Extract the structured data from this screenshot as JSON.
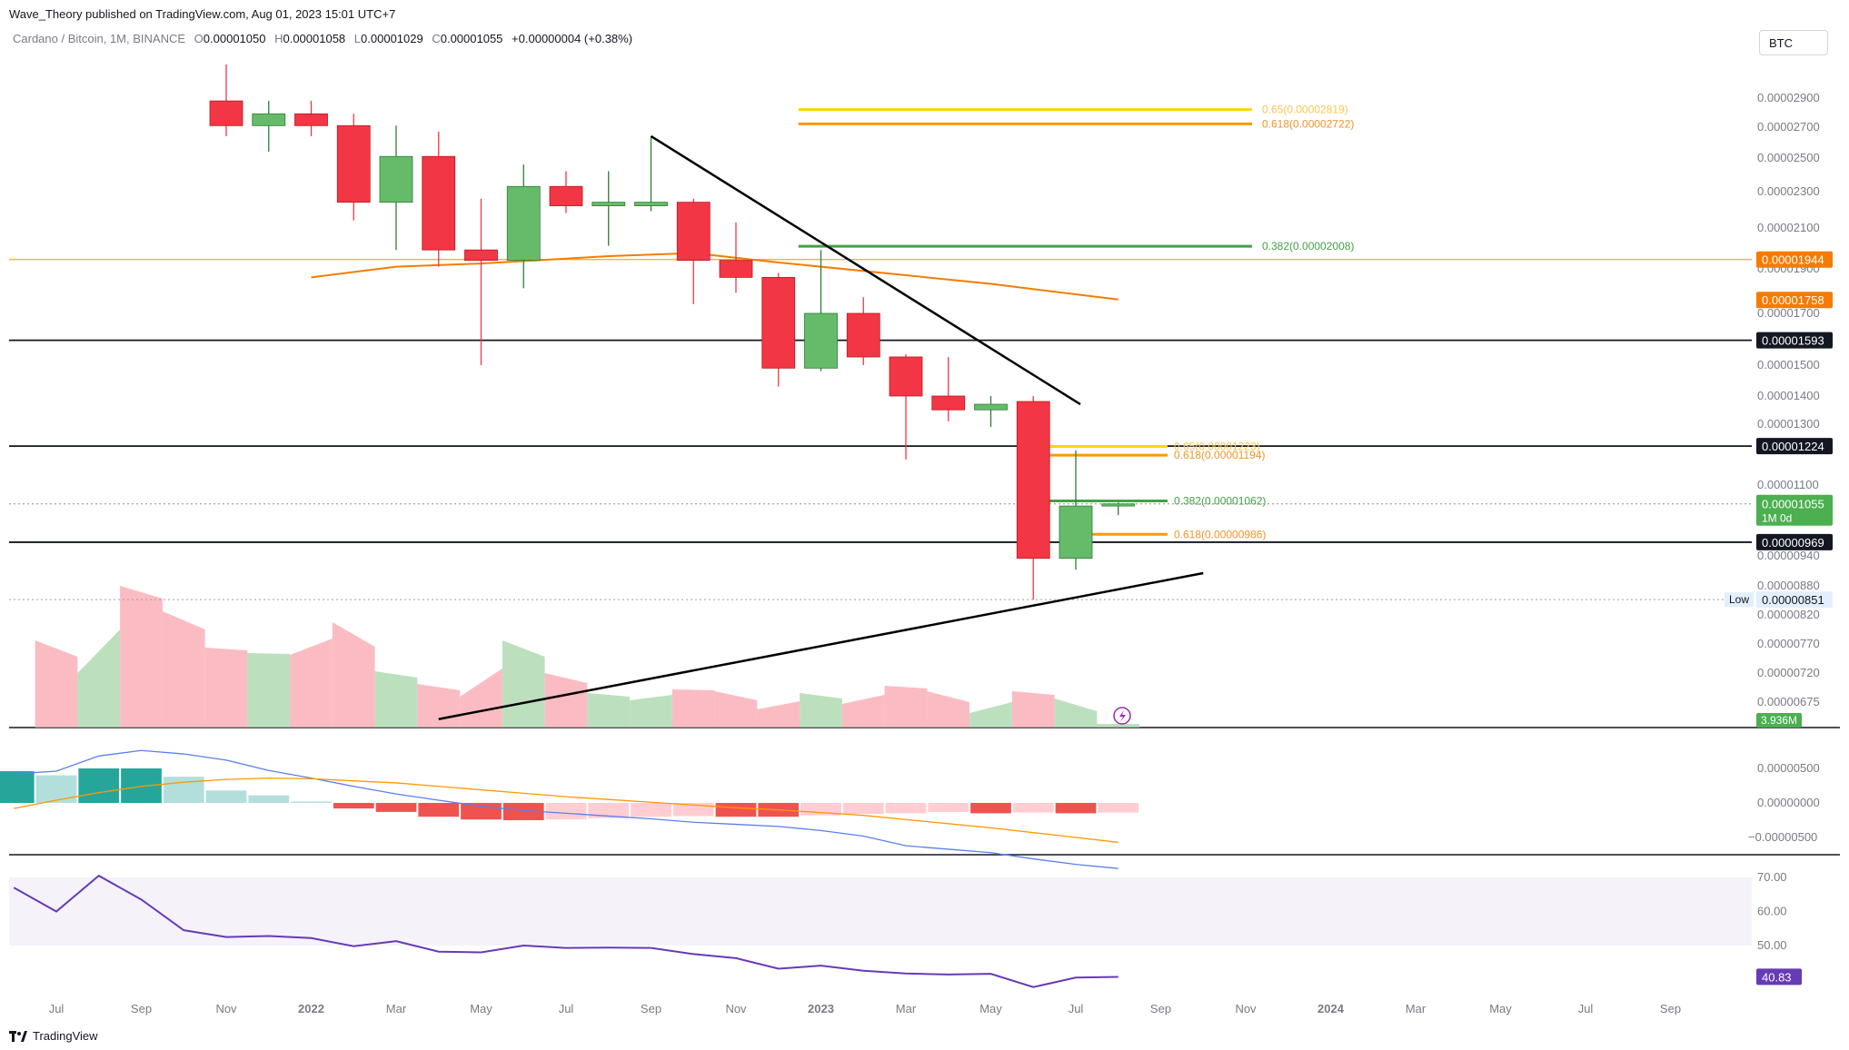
{
  "publisher": "Wave_Theory published on TradingView.com, Aug 01, 2023 15:01 UTC+7",
  "symbol_line": {
    "name": "Cardano / Bitcoin, 1M, BINANCE",
    "o_label": "O",
    "o_value": "0.00001050",
    "h_label": "H",
    "h_value": "0.00001058",
    "l_label": "L",
    "l_value": "0.00001029",
    "c_label": "C",
    "c_value": "0.00001055",
    "change": "+0.00000004 (+0.38%)"
  },
  "currency_button": "BTC",
  "footer": {
    "brand": "TradingView"
  },
  "colors": {
    "up": "#66bb6a",
    "down": "#f23645",
    "ma": "#f57c00",
    "macd": "#5b7ff0",
    "signal": "#ff9800",
    "rsi": "#673ab7",
    "fib_yellow": "#ffd600",
    "fib_orange": "#ff9800",
    "fib_green": "#43a047"
  },
  "chart_data": {
    "type": "candlestick",
    "title": "Cardano / Bitcoin, 1M, BINANCE",
    "price_axis_labels": [
      "0.00002900",
      "0.00002700",
      "0.00002500",
      "0.00002300",
      "0.00002100",
      "0.00001900",
      "0.00001700",
      "0.00001500",
      "0.00001400",
      "0.00001300",
      "0.00001100",
      "0.00000940",
      "0.00000880",
      "0.00000820",
      "0.00000770",
      "0.00000720",
      "0.00000675"
    ],
    "price_badges": [
      {
        "value": "0.00001944",
        "kind": "orange"
      },
      {
        "value": "0.00001758",
        "kind": "orange"
      },
      {
        "value": "0.00001593",
        "kind": "black"
      },
      {
        "value": "0.00001224",
        "kind": "black"
      },
      {
        "value": "0.00001055",
        "kind": "green",
        "sub": "1M 0d"
      },
      {
        "value": "0.00000969",
        "kind": "black"
      },
      {
        "value": "0.00000851",
        "kind": "low",
        "tag": "Low"
      }
    ],
    "time_labels": [
      "Jul",
      "Sep",
      "Nov",
      "2022",
      "Mar",
      "May",
      "Jul",
      "Sep",
      "Nov",
      "2023",
      "Mar",
      "May",
      "Jul",
      "Sep",
      "Nov",
      "2024",
      "Mar",
      "May",
      "Jul",
      "Sep"
    ],
    "candles": [
      {
        "t": "2021-11",
        "o": 2.88e-05,
        "h": 3.15e-05,
        "l": 2.64e-05,
        "c": 2.71e-05
      },
      {
        "t": "2021-12",
        "o": 2.71e-05,
        "h": 2.88e-05,
        "l": 2.54e-05,
        "c": 2.79e-05
      },
      {
        "t": "2022-01",
        "o": 2.79e-05,
        "h": 2.88e-05,
        "l": 2.64e-05,
        "c": 2.71e-05
      },
      {
        "t": "2022-02",
        "o": 2.71e-05,
        "h": 2.79e-05,
        "l": 2.14e-05,
        "c": 2.24e-05
      },
      {
        "t": "2022-03",
        "o": 2.24e-05,
        "h": 2.71e-05,
        "l": 1.99e-05,
        "c": 2.51e-05
      },
      {
        "t": "2022-04",
        "o": 2.51e-05,
        "h": 2.67e-05,
        "l": 1.91e-05,
        "c": 1.99e-05
      },
      {
        "t": "2022-05",
        "o": 1.99e-05,
        "h": 2.26e-05,
        "l": 1.5e-05,
        "c": 1.94e-05
      },
      {
        "t": "2022-06",
        "o": 1.94e-05,
        "h": 2.46e-05,
        "l": 1.81e-05,
        "c": 2.33e-05
      },
      {
        "t": "2022-07",
        "o": 2.33e-05,
        "h": 2.42e-05,
        "l": 2.18e-05,
        "c": 2.22e-05
      },
      {
        "t": "2022-08",
        "o": 2.22e-05,
        "h": 2.42e-05,
        "l": 2.01e-05,
        "c": 2.24e-05
      },
      {
        "t": "2022-09",
        "o": 2.22e-05,
        "h": 2.64e-05,
        "l": 2.19e-05,
        "c": 2.24e-05
      },
      {
        "t": "2022-10",
        "o": 2.24e-05,
        "h": 2.26e-05,
        "l": 1.74e-05,
        "c": 1.94e-05
      },
      {
        "t": "2022-11",
        "o": 1.94e-05,
        "h": 2.13e-05,
        "l": 1.79e-05,
        "c": 1.86e-05
      },
      {
        "t": "2022-12",
        "o": 1.86e-05,
        "h": 1.88e-05,
        "l": 1.43e-05,
        "c": 1.49e-05
      },
      {
        "t": "2023-01",
        "o": 1.49e-05,
        "h": 1.99e-05,
        "l": 1.48e-05,
        "c": 1.7e-05
      },
      {
        "t": "2023-02",
        "o": 1.7e-05,
        "h": 1.77e-05,
        "l": 1.5e-05,
        "c": 1.53e-05
      },
      {
        "t": "2023-03",
        "o": 1.53e-05,
        "h": 1.54e-05,
        "l": 1.18e-05,
        "c": 1.4e-05
      },
      {
        "t": "2023-04",
        "o": 1.4e-05,
        "h": 1.53e-05,
        "l": 1.31e-05,
        "c": 1.35e-05
      },
      {
        "t": "2023-05",
        "o": 1.35e-05,
        "h": 1.4e-05,
        "l": 1.29e-05,
        "c": 1.37e-05
      },
      {
        "t": "2023-06",
        "o": 1.38e-05,
        "h": 1.4e-05,
        "l": 8.51e-06,
        "c": 9.35e-06
      },
      {
        "t": "2023-07",
        "o": 9.35e-06,
        "h": 1.21e-05,
        "l": 9.12e-06,
        "c": 1.05e-05
      },
      {
        "t": "2023-08",
        "o": 1.05e-05,
        "h": 1.058e-05,
        "l": 1.029e-05,
        "c": 1.055e-05
      }
    ],
    "moving_average": [
      {
        "t": "2022-01",
        "v": 1.86e-05
      },
      {
        "t": "2022-03",
        "v": 1.91e-05
      },
      {
        "t": "2022-05",
        "v": 1.925e-05
      },
      {
        "t": "2022-08",
        "v": 1.96e-05
      },
      {
        "t": "2022-10",
        "v": 1.975e-05
      },
      {
        "t": "2022-12",
        "v": 1.93e-05
      },
      {
        "t": "2023-03",
        "v": 1.87e-05
      },
      {
        "t": "2023-05",
        "v": 1.83e-05
      },
      {
        "t": "2023-08",
        "v": 1.76e-05
      }
    ],
    "fib_levels": [
      {
        "label": "0.65(0.00002819)",
        "value": 2.819e-05,
        "color": "yellow",
        "t0": "2022-12",
        "t1": "2023-09"
      },
      {
        "label": "0.618(0.00002722)",
        "value": 2.722e-05,
        "color": "orange",
        "t0": "2022-12",
        "t1": "2023-09"
      },
      {
        "label": "0.382(0.00002008)",
        "value": 2.008e-05,
        "color": "green",
        "t0": "2022-12",
        "t1": "2023-09"
      },
      {
        "label": "0.65(0.00001223)",
        "value": 1.223e-05,
        "color": "yellow",
        "t0": "2023-06",
        "t1": "2023-09"
      },
      {
        "label": "0.618(0.00001194)",
        "value": 1.194e-05,
        "color": "orange",
        "t0": "2023-06",
        "t1": "2023-09"
      },
      {
        "label": "0.382(0.00001062)",
        "value": 1.062e-05,
        "color": "green",
        "t0": "2023-06",
        "t1": "2023-09"
      },
      {
        "label": "0.618(0.00000986)",
        "value": 9.86e-06,
        "color": "orange",
        "t0": "2023-07",
        "t1": "2023-09"
      }
    ],
    "horizontal_levels": [
      1.944e-05,
      1.593e-05,
      1.224e-05,
      9.69e-06
    ],
    "trendlines": [
      {
        "t0": "2022-09",
        "v0": 2.64e-05,
        "t1": "2023-07",
        "v1": 1.37e-05
      },
      {
        "t0": "2022-04",
        "v0": 6.5e-06,
        "t1": "2023-10",
        "v1": 9.05e-06
      }
    ],
    "volume": {
      "last_label": "3.936M",
      "bars": [
        {
          "t": "2021-07",
          "v": 0.48,
          "up": false
        },
        {
          "t": "2021-08",
          "v": 0.3,
          "up": true
        },
        {
          "t": "2021-09",
          "v": 0.78,
          "up": false
        },
        {
          "t": "2021-10",
          "v": 0.64,
          "up": false
        },
        {
          "t": "2021-11",
          "v": 0.44,
          "up": false
        },
        {
          "t": "2021-12",
          "v": 0.41,
          "up": true
        },
        {
          "t": "2022-01",
          "v": 0.4,
          "up": false
        },
        {
          "t": "2022-02",
          "v": 0.58,
          "up": false
        },
        {
          "t": "2022-03",
          "v": 0.31,
          "up": true
        },
        {
          "t": "2022-04",
          "v": 0.24,
          "up": false
        },
        {
          "t": "2022-05",
          "v": 0.17,
          "up": false
        },
        {
          "t": "2022-06",
          "v": 0.48,
          "up": true
        },
        {
          "t": "2022-07",
          "v": 0.3,
          "up": false
        },
        {
          "t": "2022-08",
          "v": 0.19,
          "up": true
        },
        {
          "t": "2022-09",
          "v": 0.15,
          "up": true
        },
        {
          "t": "2022-10",
          "v": 0.21,
          "up": false
        },
        {
          "t": "2022-11",
          "v": 0.2,
          "up": false
        },
        {
          "t": "2022-12",
          "v": 0.1,
          "up": false
        },
        {
          "t": "2023-01",
          "v": 0.19,
          "up": true
        },
        {
          "t": "2023-02",
          "v": 0.13,
          "up": false
        },
        {
          "t": "2023-03",
          "v": 0.23,
          "up": false
        },
        {
          "t": "2023-04",
          "v": 0.2,
          "up": false
        },
        {
          "t": "2023-05",
          "v": 0.08,
          "up": true
        },
        {
          "t": "2023-06",
          "v": 0.2,
          "up": false
        },
        {
          "t": "2023-07",
          "v": 0.16,
          "up": true
        },
        {
          "t": "2023-08",
          "v": 0.02,
          "up": true
        }
      ]
    },
    "macd": {
      "axis_labels": [
        "0.00000500",
        "0.00000000",
        "−0.00000500"
      ],
      "macd_line": [
        4.2e-06,
        4.6e-06,
        6.8e-06,
        7.6e-06,
        7.1e-06,
        6.2e-06,
        4.7e-06,
        3.6e-06,
        2.4e-06,
        1.3e-06,
        4e-07,
        -5e-07,
        -1.1e-06,
        -1.5e-06,
        -1.9e-06,
        -2.3e-06,
        -2.8e-06,
        -3.1e-06,
        -3.4e-06,
        -4e-06,
        -4.8e-06,
        -6.2e-06,
        -6.7e-06,
        -7.2e-06,
        -8.1e-06,
        -8.9e-06,
        -9.5e-06
      ],
      "signal_line": [
        -8e-07,
        4e-07,
        1.5e-06,
        2.4e-06,
        3e-06,
        3.4e-06,
        3.6e-06,
        3.5e-06,
        3.2e-06,
        2.9e-06,
        2.4e-06,
        1.9e-06,
        1.4e-06,
        9e-07,
        5e-07,
        1e-07,
        -3e-07,
        -7e-07,
        -1e-06,
        -1.4e-06,
        -1.8e-06,
        -2.4e-06,
        -3e-06,
        -3.6e-06,
        -4.3e-06,
        -5e-06,
        -5.7e-06
      ],
      "histogram": [
        4.6e-06,
        4e-06,
        5e-06,
        5e-06,
        3.8e-06,
        1.8e-06,
        1.1e-06,
        2e-07,
        -8e-07,
        -1.3e-06,
        -2e-06,
        -2.4e-06,
        -2.5e-06,
        -2.4e-06,
        -2.2e-06,
        -2e-06,
        -1.9e-06,
        -2e-06,
        -2e-06,
        -1.8e-06,
        -1.6e-06,
        -1.5e-06,
        -1.3e-06,
        -1.5e-06,
        -1.4e-06,
        -1.5e-06,
        -1.4e-06
      ]
    },
    "rsi": {
      "axis_labels": [
        "70.00",
        "60.00",
        "50.00"
      ],
      "last_label": "40.83",
      "values": [
        67.0,
        60.0,
        70.5,
        63.5,
        54.5,
        52.5,
        52.8,
        52.2,
        49.8,
        51.3,
        48.2,
        48.0,
        50.0,
        49.3,
        49.4,
        49.3,
        47.5,
        46.3,
        43.2,
        44.1,
        42.6,
        41.8,
        41.5,
        41.7,
        37.8,
        40.6,
        40.8
      ]
    }
  }
}
